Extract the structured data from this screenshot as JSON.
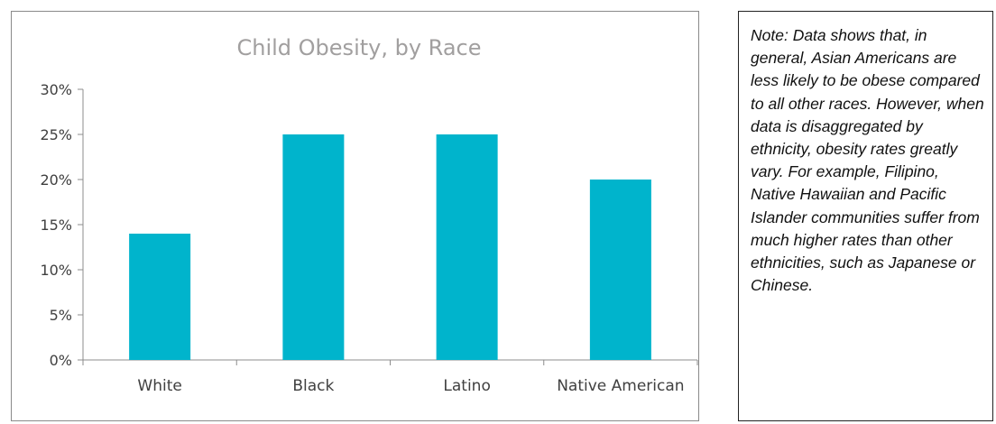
{
  "chart_data": {
    "type": "bar",
    "title": "Child Obesity, by Race",
    "categories": [
      "White",
      "Black",
      "Latino",
      "Native American"
    ],
    "values": [
      14,
      25,
      25,
      20
    ],
    "unit": "%",
    "yticks": [
      "0%",
      "5%",
      "10%",
      "15%",
      "20%",
      "25%",
      "30%"
    ],
    "ylim": [
      0,
      30
    ],
    "xlabel": "",
    "ylabel": "",
    "grid": false,
    "bar_color": "#00b4cc"
  },
  "note": {
    "text": "Note: Data shows that, in general, Asian Americans are less likely to be obese compared to all other races. However, when data is disaggregated by ethnicity, obesity rates greatly vary.  For example, Filipino, Native Hawaiian and Pacific Islander communities suffer from much higher rates than other ethnicities, such as Japanese or Chinese."
  }
}
